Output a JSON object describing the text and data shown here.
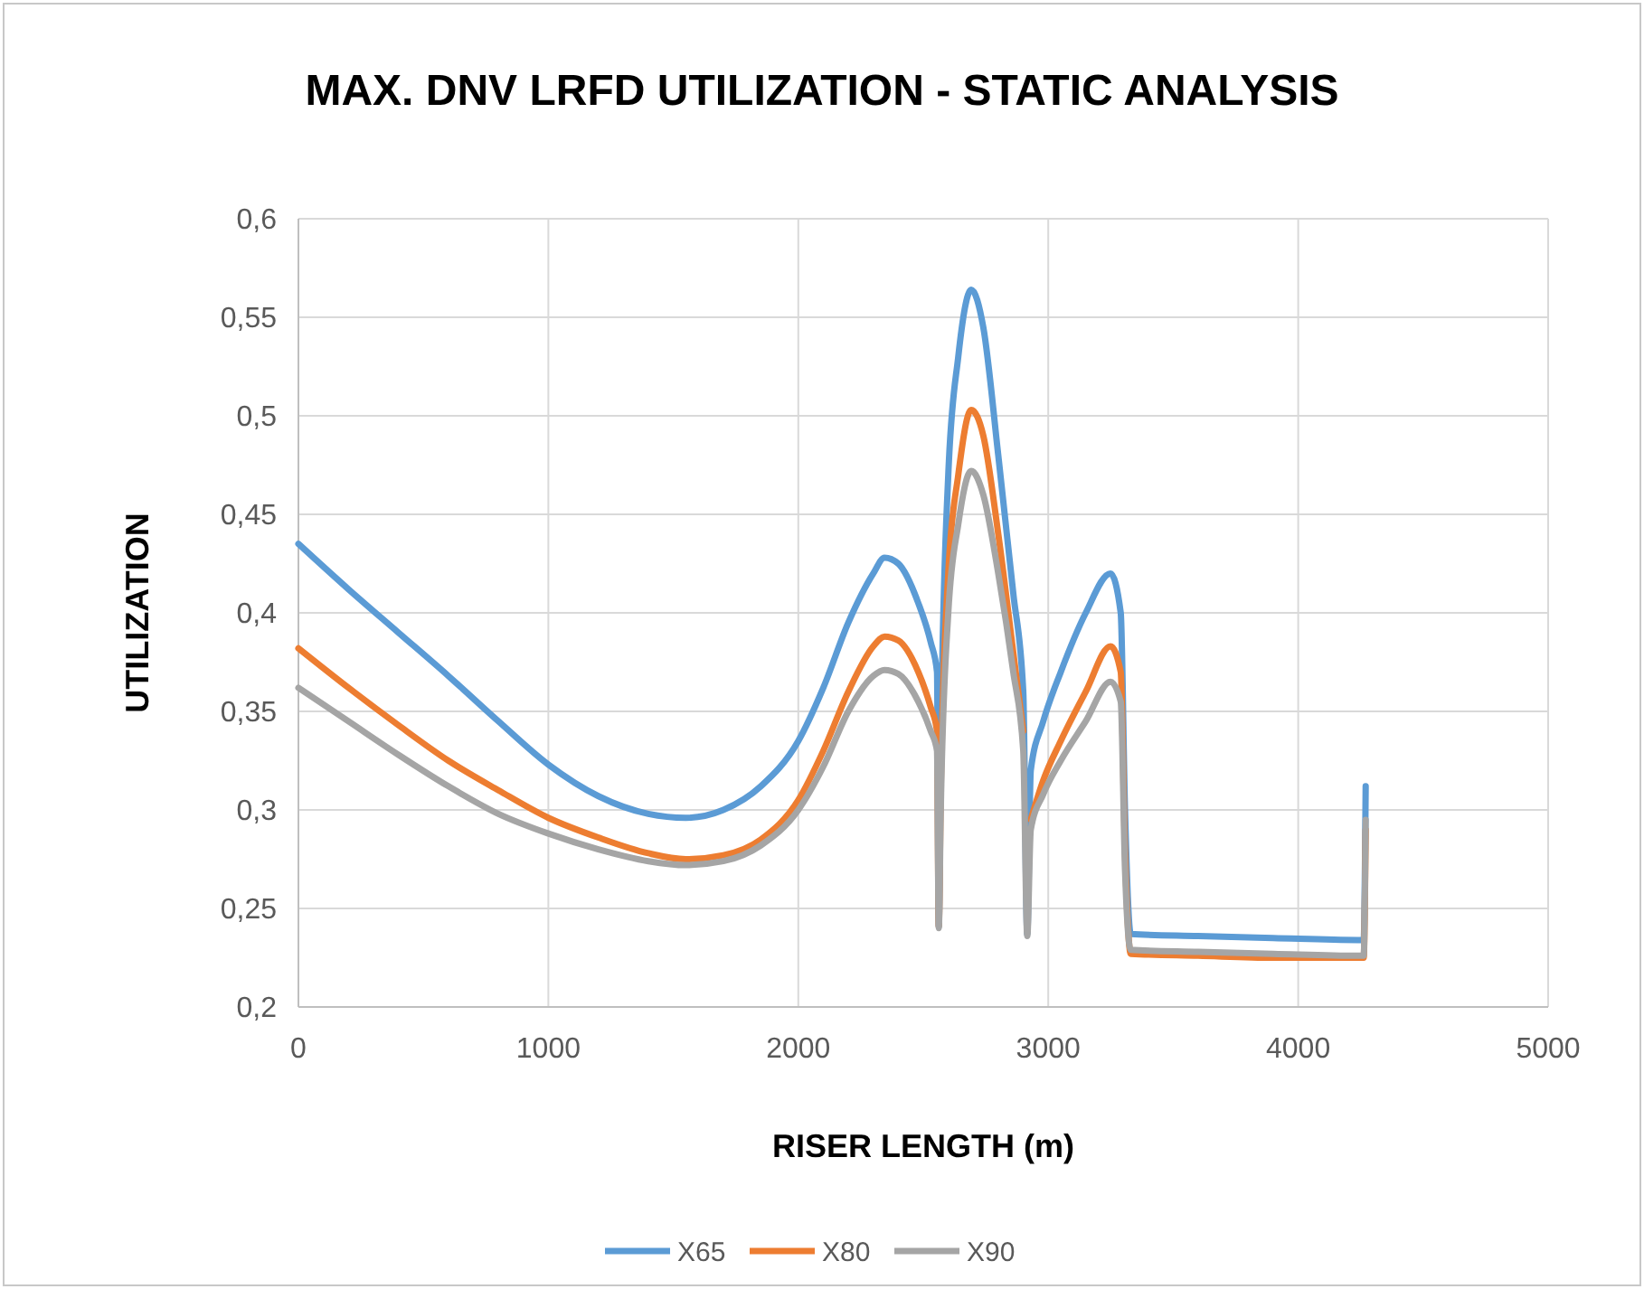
{
  "chart_data": {
    "type": "line",
    "title": "MAX. DNV LRFD UTILIZATION - STATIC ANALYSIS",
    "xlabel": "RISER LENGTH (m)",
    "ylabel": "UTILIZATION",
    "x": [
      0,
      200,
      400,
      600,
      800,
      1000,
      1200,
      1400,
      1550,
      1700,
      1850,
      2000,
      2100,
      2200,
      2300,
      2345,
      2400,
      2480,
      2530,
      2555,
      2562,
      2570,
      2600,
      2640,
      2692,
      2740,
      2800,
      2860,
      2900,
      2916,
      2930,
      2980,
      3050,
      3150,
      3249,
      3290,
      3307,
      3330,
      3600,
      3900,
      4240,
      4262,
      4270
    ],
    "series": [
      {
        "name": "X65",
        "color": "#5b9bd5",
        "values": [
          0.435,
          0.412,
          0.39,
          0.368,
          0.345,
          0.323,
          0.307,
          0.298,
          0.296,
          0.3,
          0.312,
          0.335,
          0.362,
          0.395,
          0.42,
          0.428,
          0.425,
          0.405,
          0.385,
          0.37,
          0.241,
          0.33,
          0.47,
          0.53,
          0.564,
          0.545,
          0.48,
          0.41,
          0.36,
          0.237,
          0.32,
          0.345,
          0.37,
          0.4,
          0.42,
          0.4,
          0.3,
          0.237,
          0.236,
          0.235,
          0.234,
          0.234,
          0.312
        ]
      },
      {
        "name": "X80",
        "color": "#ed7d31",
        "values": [
          0.382,
          0.362,
          0.343,
          0.325,
          0.31,
          0.296,
          0.286,
          0.278,
          0.275,
          0.277,
          0.285,
          0.305,
          0.33,
          0.36,
          0.383,
          0.388,
          0.386,
          0.37,
          0.352,
          0.34,
          0.241,
          0.31,
          0.42,
          0.47,
          0.503,
          0.49,
          0.44,
          0.38,
          0.34,
          null,
          0.295,
          0.315,
          0.335,
          0.36,
          0.383,
          0.37,
          0.28,
          0.227,
          0.226,
          0.225,
          0.225,
          0.225,
          0.29
        ]
      },
      {
        "name": "X90",
        "color": "#a5a5a5",
        "values": [
          0.362,
          0.345,
          0.328,
          0.312,
          0.298,
          0.288,
          0.28,
          0.274,
          0.272,
          0.274,
          0.282,
          0.3,
          0.322,
          0.35,
          0.368,
          0.371,
          0.369,
          0.355,
          0.34,
          0.33,
          0.24,
          0.3,
          0.4,
          0.445,
          0.472,
          0.46,
          0.42,
          0.37,
          0.33,
          0.236,
          0.29,
          0.308,
          0.325,
          0.345,
          0.365,
          0.355,
          0.27,
          0.229,
          0.228,
          0.227,
          0.226,
          0.226,
          0.295
        ]
      }
    ],
    "xlim": [
      0,
      5000
    ],
    "xticks": [
      0,
      1000,
      2000,
      3000,
      4000,
      5000
    ],
    "ylim": [
      0.2,
      0.6
    ],
    "yticks": [
      {
        "value": 0.2,
        "label": "0,2"
      },
      {
        "value": 0.25,
        "label": "0,25"
      },
      {
        "value": 0.3,
        "label": "0,3"
      },
      {
        "value": 0.35,
        "label": "0,35"
      },
      {
        "value": 0.4,
        "label": "0,4"
      },
      {
        "value": 0.45,
        "label": "0,45"
      },
      {
        "value": 0.5,
        "label": "0,5"
      },
      {
        "value": 0.55,
        "label": "0,55"
      },
      {
        "value": 0.6,
        "label": "0,6"
      }
    ],
    "grid": true,
    "legend": "bottom",
    "marker": "none",
    "line_style": "solid"
  }
}
